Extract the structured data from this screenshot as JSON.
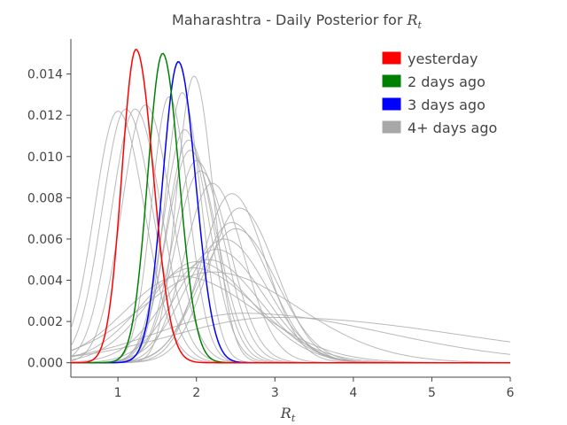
{
  "chart_data": {
    "type": "line",
    "title_prefix": "Maharashtra - Daily Posterior for ",
    "title_var": "R",
    "title_sub": "t",
    "xlabel_var": "R",
    "xlabel_sub": "t",
    "xlim": [
      0.4,
      6.0
    ],
    "ylim": [
      -0.0007,
      0.0157
    ],
    "xticks": [
      1,
      2,
      3,
      4,
      5,
      6
    ],
    "yticks": [
      "0.000",
      "0.002",
      "0.004",
      "0.006",
      "0.008",
      "0.010",
      "0.012",
      "0.014"
    ],
    "grid": false,
    "legend_position": "top-right",
    "legend": [
      {
        "label": "yesterday",
        "color": "#ff0000"
      },
      {
        "label": "2 days ago",
        "color": "#008000"
      },
      {
        "label": "3 days ago",
        "color": "#0000ff"
      },
      {
        "label": "4+ days ago",
        "color": "#a8a8a8"
      }
    ],
    "series": [
      {
        "name": "yesterday",
        "color": "#ff0000",
        "peak_x": 1.23,
        "peak_y": 0.0152,
        "sigma_left": 0.18,
        "sigma_right": 0.22
      },
      {
        "name": "2 days ago",
        "color": "#008000",
        "peak_x": 1.57,
        "peak_y": 0.015,
        "sigma_left": 0.19,
        "sigma_right": 0.21
      },
      {
        "name": "3 days ago",
        "color": "#0000ff",
        "peak_x": 1.77,
        "peak_y": 0.0146,
        "sigma_left": 0.2,
        "sigma_right": 0.22
      },
      {
        "name": "4+ days ago",
        "color": "#a8a8a8",
        "peak_x": 1.0,
        "peak_y": 0.0122,
        "sigma_left": 0.3,
        "sigma_right": 0.34
      },
      {
        "name": "4+ days ago",
        "color": "#a8a8a8",
        "peak_x": 1.1,
        "peak_y": 0.0123,
        "sigma_left": 0.3,
        "sigma_right": 0.34
      },
      {
        "name": "4+ days ago",
        "color": "#a8a8a8",
        "peak_x": 1.22,
        "peak_y": 0.0123,
        "sigma_left": 0.3,
        "sigma_right": 0.33
      },
      {
        "name": "4+ days ago",
        "color": "#a8a8a8",
        "peak_x": 1.35,
        "peak_y": 0.0125,
        "sigma_left": 0.3,
        "sigma_right": 0.33
      },
      {
        "name": "4+ days ago",
        "color": "#a8a8a8",
        "peak_x": 1.65,
        "peak_y": 0.0129,
        "sigma_left": 0.22,
        "sigma_right": 0.25
      },
      {
        "name": "4+ days ago",
        "color": "#a8a8a8",
        "peak_x": 1.82,
        "peak_y": 0.0131,
        "sigma_left": 0.22,
        "sigma_right": 0.24
      },
      {
        "name": "4+ days ago",
        "color": "#a8a8a8",
        "peak_x": 1.97,
        "peak_y": 0.0139,
        "sigma_left": 0.22,
        "sigma_right": 0.24
      },
      {
        "name": "4+ days ago",
        "color": "#a8a8a8",
        "peak_x": 1.85,
        "peak_y": 0.0113,
        "sigma_left": 0.27,
        "sigma_right": 0.31
      },
      {
        "name": "4+ days ago",
        "color": "#a8a8a8",
        "peak_x": 1.9,
        "peak_y": 0.0108,
        "sigma_left": 0.28,
        "sigma_right": 0.32
      },
      {
        "name": "4+ days ago",
        "color": "#a8a8a8",
        "peak_x": 1.92,
        "peak_y": 0.0103,
        "sigma_left": 0.3,
        "sigma_right": 0.34
      },
      {
        "name": "4+ days ago",
        "color": "#a8a8a8",
        "peak_x": 2.0,
        "peak_y": 0.0098,
        "sigma_left": 0.3,
        "sigma_right": 0.35
      },
      {
        "name": "4+ days ago",
        "color": "#a8a8a8",
        "peak_x": 2.05,
        "peak_y": 0.0093,
        "sigma_left": 0.32,
        "sigma_right": 0.37
      },
      {
        "name": "4+ days ago",
        "color": "#a8a8a8",
        "peak_x": 2.2,
        "peak_y": 0.0087,
        "sigma_left": 0.35,
        "sigma_right": 0.4
      },
      {
        "name": "4+ days ago",
        "color": "#a8a8a8",
        "peak_x": 2.45,
        "peak_y": 0.0082,
        "sigma_left": 0.38,
        "sigma_right": 0.43
      },
      {
        "name": "4+ days ago",
        "color": "#a8a8a8",
        "peak_x": 2.55,
        "peak_y": 0.0075,
        "sigma_left": 0.4,
        "sigma_right": 0.46
      },
      {
        "name": "4+ days ago",
        "color": "#a8a8a8",
        "peak_x": 2.45,
        "peak_y": 0.0068,
        "sigma_left": 0.42,
        "sigma_right": 0.48
      },
      {
        "name": "4+ days ago",
        "color": "#a8a8a8",
        "peak_x": 2.5,
        "peak_y": 0.0065,
        "sigma_left": 0.45,
        "sigma_right": 0.52
      },
      {
        "name": "4+ days ago",
        "color": "#a8a8a8",
        "peak_x": 2.35,
        "peak_y": 0.006,
        "sigma_left": 0.48,
        "sigma_right": 0.55
      },
      {
        "name": "4+ days ago",
        "color": "#a8a8a8",
        "peak_x": 2.25,
        "peak_y": 0.0055,
        "sigma_left": 0.5,
        "sigma_right": 0.6
      },
      {
        "name": "4+ days ago",
        "color": "#a8a8a8",
        "peak_x": 2.15,
        "peak_y": 0.005,
        "sigma_left": 0.55,
        "sigma_right": 0.65
      },
      {
        "name": "4+ days ago",
        "color": "#a8a8a8",
        "peak_x": 2.0,
        "peak_y": 0.0049,
        "sigma_left": 0.6,
        "sigma_right": 0.7
      },
      {
        "name": "4+ days ago",
        "color": "#a8a8a8",
        "peak_x": 1.95,
        "peak_y": 0.0046,
        "sigma_left": 0.65,
        "sigma_right": 0.8
      },
      {
        "name": "4+ days ago",
        "color": "#a8a8a8",
        "peak_x": 1.8,
        "peak_y": 0.0042,
        "sigma_left": 0.7,
        "sigma_right": 0.95
      },
      {
        "name": "4+ days ago",
        "color": "#a8a8a8",
        "peak_x": 2.2,
        "peak_y": 0.0044,
        "sigma_left": 0.9,
        "sigma_right": 1.1
      },
      {
        "name": "4+ days ago",
        "color": "#a8a8a8",
        "peak_x": 2.6,
        "peak_y": 0.0024,
        "sigma_left": 1.1,
        "sigma_right": 1.8
      },
      {
        "name": "4+ days ago",
        "color": "#a8a8a8",
        "peak_x": 3.0,
        "peak_y": 0.0022,
        "sigma_left": 1.3,
        "sigma_right": 2.4
      }
    ]
  }
}
